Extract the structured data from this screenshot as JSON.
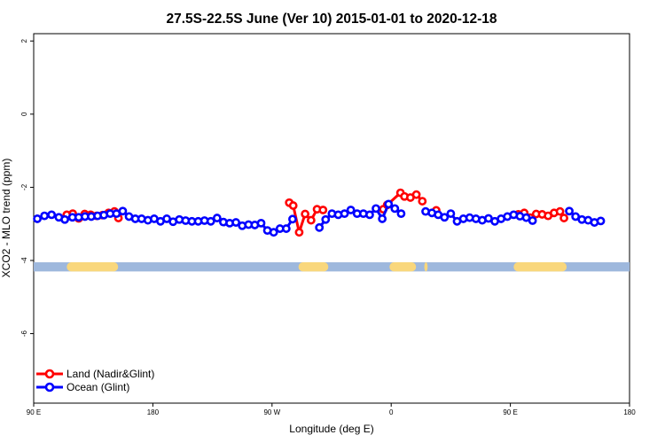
{
  "chart_data": {
    "type": "line",
    "title": "27.5S-22.5S June (Ver 10)   2015-01-01 to 2020-12-18",
    "xlabel": "Longitude (deg E)",
    "ylabel": "XCO2 - MLO trend (ppm)",
    "xlim": [
      90,
      450
    ],
    "ylim": [
      -7.9,
      2.2
    ],
    "x_ticks": [
      {
        "value": 90,
        "label": "90 E"
      },
      {
        "value": 162,
        "label": "180"
      },
      {
        "value": 234,
        "label": "90 W"
      },
      {
        "value": 306,
        "label": "0"
      },
      {
        "value": 378,
        "label": "90 E"
      },
      {
        "value": 450,
        "label": "180"
      }
    ],
    "y_ticks": [
      {
        "value": 2,
        "label": "2"
      },
      {
        "value": 0,
        "label": "0"
      },
      {
        "value": -2,
        "label": "-2"
      },
      {
        "value": -4,
        "label": "-4"
      },
      {
        "value": -6,
        "label": "-6"
      }
    ],
    "grid": false,
    "legend_position": "bottom-left",
    "series": [
      {
        "name": "Land (Nadir&Glint)",
        "color": "#ff0000",
        "segments": [
          [
            [
              110,
              -2.75
            ],
            [
              113.6,
              -2.72
            ],
            [
              117.2,
              -2.85
            ],
            [
              120.8,
              -2.73
            ],
            [
              124.4,
              -2.75
            ],
            [
              128,
              -2.78
            ],
            [
              131.6,
              -2.76
            ],
            [
              135.2,
              -2.7
            ],
            [
              138.8,
              -2.66
            ],
            [
              141.2,
              -2.84
            ]
          ],
          [
            [
              244.4,
              -2.42
            ],
            [
              246.8,
              -2.5
            ],
            [
              250.4,
              -3.23
            ],
            [
              254,
              -2.73
            ],
            [
              257.6,
              -2.9
            ],
            [
              261.2,
              -2.6
            ],
            [
              264.8,
              -2.62
            ]
          ],
          [
            [
              301.2,
              -2.6
            ],
            [
              303.6,
              -2.48
            ],
            [
              311.6,
              -2.15
            ],
            [
              314,
              -2.25
            ],
            [
              317.6,
              -2.28
            ],
            [
              321.2,
              -2.2
            ],
            [
              324.8,
              -2.38
            ]
          ],
          [
            [
              333.2,
              -2.63
            ]
          ],
          [
            [
              382.8,
              -2.74
            ],
            [
              386.4,
              -2.7
            ],
            [
              390,
              -2.83
            ],
            [
              393.6,
              -2.73
            ],
            [
              397.2,
              -2.74
            ],
            [
              400.8,
              -2.78
            ],
            [
              404.4,
              -2.7
            ],
            [
              408,
              -2.66
            ],
            [
              410.4,
              -2.84
            ]
          ]
        ]
      },
      {
        "name": "Ocean (Glint)",
        "color": "#0000ff",
        "segments": [
          [
            [
              92.2,
              -2.86
            ],
            [
              96.5,
              -2.78
            ],
            [
              100.8,
              -2.75
            ],
            [
              105.2,
              -2.82
            ],
            [
              108.8,
              -2.88
            ],
            [
              113.4,
              -2.82
            ],
            [
              117.2,
              -2.82
            ],
            [
              121,
              -2.8
            ],
            [
              124.8,
              -2.8
            ],
            [
              128.6,
              -2.78
            ],
            [
              132.4,
              -2.76
            ],
            [
              136.2,
              -2.72
            ],
            [
              140,
              -2.72
            ],
            [
              143.8,
              -2.65
            ],
            [
              147.6,
              -2.8
            ],
            [
              151.4,
              -2.86
            ],
            [
              155.2,
              -2.86
            ],
            [
              159,
              -2.9
            ],
            [
              162.8,
              -2.86
            ],
            [
              166.6,
              -2.93
            ],
            [
              170.4,
              -2.86
            ],
            [
              174.2,
              -2.94
            ],
            [
              178,
              -2.88
            ],
            [
              181.8,
              -2.91
            ],
            [
              185.6,
              -2.93
            ],
            [
              189.4,
              -2.93
            ],
            [
              193.2,
              -2.91
            ],
            [
              197,
              -2.93
            ],
            [
              200.8,
              -2.84
            ],
            [
              204.6,
              -2.95
            ],
            [
              208.4,
              -2.98
            ],
            [
              212.2,
              -2.96
            ],
            [
              216,
              -3.05
            ],
            [
              219.8,
              -3.02
            ],
            [
              223.6,
              -3.03
            ],
            [
              227.4,
              -2.98
            ],
            [
              231.2,
              -3.18
            ],
            [
              235,
              -3.23
            ],
            [
              238.8,
              -3.13
            ],
            [
              242.6,
              -3.13
            ],
            [
              246.4,
              -2.87
            ]
          ],
          [
            [
              262.6,
              -3.1
            ],
            [
              266.4,
              -2.88
            ],
            [
              270.2,
              -2.72
            ],
            [
              274,
              -2.75
            ],
            [
              277.8,
              -2.72
            ],
            [
              281.6,
              -2.62
            ],
            [
              285.4,
              -2.72
            ],
            [
              289.2,
              -2.72
            ],
            [
              293,
              -2.75
            ],
            [
              296.8,
              -2.58
            ],
            [
              300.6,
              -2.86
            ],
            [
              304.4,
              -2.46
            ],
            [
              308.2,
              -2.58
            ],
            [
              312,
              -2.72
            ]
          ],
          [
            [
              326.8,
              -2.66
            ],
            [
              330.6,
              -2.7
            ],
            [
              334.4,
              -2.75
            ],
            [
              338.2,
              -2.82
            ],
            [
              342,
              -2.72
            ],
            [
              345.8,
              -2.93
            ],
            [
              349.6,
              -2.86
            ],
            [
              353.4,
              -2.83
            ],
            [
              357.2,
              -2.86
            ],
            [
              361,
              -2.9
            ],
            [
              364.8,
              -2.85
            ],
            [
              368.6,
              -2.93
            ],
            [
              372.4,
              -2.86
            ],
            [
              376.2,
              -2.8
            ],
            [
              380,
              -2.75
            ],
            [
              383.8,
              -2.79
            ],
            [
              387.6,
              -2.83
            ],
            [
              391.4,
              -2.91
            ]
          ],
          [
            [
              413.6,
              -2.65
            ],
            [
              417.4,
              -2.8
            ],
            [
              421.2,
              -2.88
            ],
            [
              425,
              -2.9
            ],
            [
              428.8,
              -2.96
            ],
            [
              432.6,
              -2.92
            ]
          ]
        ]
      }
    ],
    "bottom_band": {
      "y_range": [
        -4.3,
        -4.05
      ],
      "ocean_color": "#9eb8dd",
      "land_color": "#f9d77c",
      "land_ranges": [
        [
          110,
          141
        ],
        [
          250,
          268
        ],
        [
          305,
          321
        ],
        [
          326,
          328
        ],
        [
          380,
          412
        ]
      ]
    }
  }
}
